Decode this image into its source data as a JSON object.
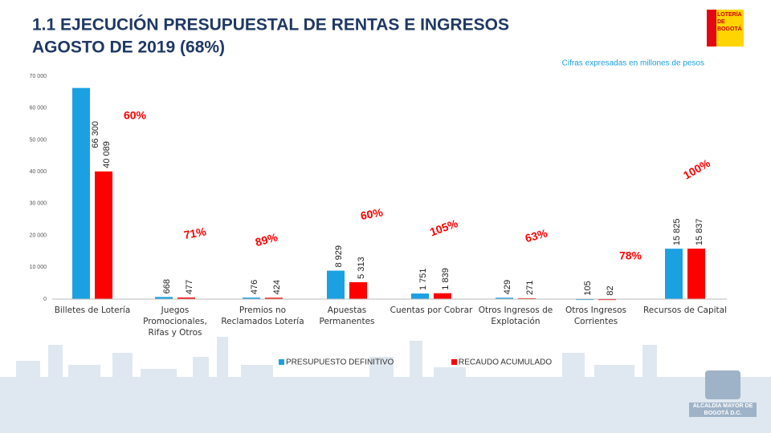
{
  "chart_data": {
    "type": "bar",
    "title": "1.1 EJECUCIÓN PRESUPUESTAL DE RENTAS E INGRESOS",
    "subtitle": "AGOSTO DE 2019 (68%)",
    "note": "Cifras expresadas en millones de pesos",
    "categories": [
      "Billetes de Lotería",
      "Juegos Promocionales, Rifas y Otros",
      "Premios no Reclamados Lotería",
      "Apuestas Permanentes",
      "Cuentas por Cobrar",
      "Otros Ingresos de Explotación",
      "Otros Ingresos Corrientes",
      "Recursos de Capital"
    ],
    "series": [
      {
        "name": "PRESUPUESTO DEFINITIVO",
        "color": "#1ba1e2",
        "values": [
          66300,
          668,
          476,
          8929,
          1751,
          429,
          105,
          15825
        ],
        "value_labels": [
          "66 300",
          "668",
          "476",
          "8 929",
          "1 751",
          "429",
          "105",
          "15 825"
        ]
      },
      {
        "name": "RECAUDO ACUMULADO",
        "color": "#ff0000",
        "values": [
          40089,
          477,
          424,
          5313,
          1839,
          271,
          82,
          15837
        ],
        "value_labels": [
          "40 089",
          "477",
          "424",
          "5 313",
          "1 839",
          "271",
          "82",
          "15 837"
        ]
      }
    ],
    "execution_labels": [
      "60%",
      "71%",
      "89%",
      "60%",
      "105%",
      "63%",
      "78%",
      "100%"
    ],
    "ylim": [
      0,
      70000
    ],
    "yticks": [
      0,
      {
        "value": 10000,
        "label": "10 000"
      },
      {
        "value": 20000,
        "label": "20 000"
      },
      {
        "value": 30000,
        "label": "30 000"
      },
      {
        "value": 40000,
        "label": "40 000"
      },
      {
        "value": 50000,
        "label": "50 000"
      },
      {
        "value": 60000,
        "label": "60 000"
      },
      {
        "value": 70000,
        "label": "70 000"
      }
    ],
    "grid": false
  },
  "logos": {
    "top": "LOTERÍA DE BOGOTÁ",
    "bottom": "ALCALDÍA MAYOR DE BOGOTÁ D.C."
  }
}
